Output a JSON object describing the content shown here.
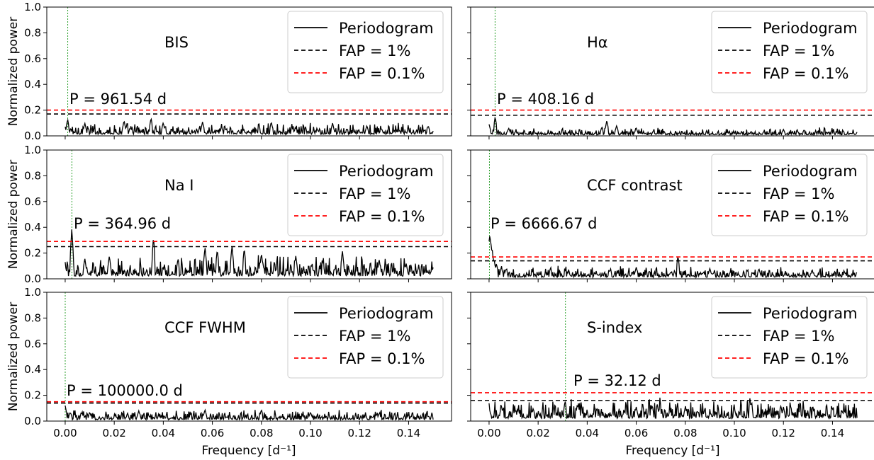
{
  "figure": {
    "ylabel": "Normalized power",
    "xlabel": "Frequency [d⁻¹]",
    "legend": {
      "periodogram": "Periodogram",
      "fap1": "FAP = 1%",
      "fap01": "FAP = 0.1%"
    },
    "y_tick_labels": [
      "0.0",
      "0.2",
      "0.4",
      "0.6",
      "0.8",
      "1.0"
    ],
    "x_tick_labels": [
      "0.00",
      "0.02",
      "0.04",
      "0.06",
      "0.08",
      "0.10",
      "0.12",
      "0.14"
    ],
    "colors": {
      "periodogram": "#000000",
      "fap1": "#000000",
      "fap01": "#ff0000",
      "peak_marker": "#2ca02c"
    }
  },
  "chart_data": [
    {
      "type": "line",
      "title": "BIS",
      "annotation": "P = 961.54 d",
      "xlim": [
        -0.0075,
        0.1575
      ],
      "ylim": [
        0,
        1
      ],
      "peak_frequency": 0.00104,
      "fap_1": 0.17,
      "fap_01": 0.2,
      "series": [
        {
          "noise_level": 0.04,
          "spikes": [
            [
              0.001,
              0.13
            ],
            [
              0.008,
              0.1
            ],
            [
              0.024,
              0.12
            ],
            [
              0.035,
              0.14
            ],
            [
              0.04,
              0.1
            ],
            [
              0.056,
              0.11
            ],
            [
              0.084,
              0.11
            ],
            [
              0.109,
              0.1
            ],
            [
              0.123,
              0.08
            ],
            [
              0.148,
              0.08
            ]
          ]
        }
      ]
    },
    {
      "type": "line",
      "title": "Hα",
      "annotation": "P = 408.16 d",
      "xlim": [
        -0.0075,
        0.1575
      ],
      "ylim": [
        0,
        1
      ],
      "peak_frequency": 0.00245,
      "fap_1": 0.16,
      "fap_01": 0.2,
      "series": [
        {
          "noise_level": 0.025,
          "spikes": [
            [
              0.0,
              0.09
            ],
            [
              0.0025,
              0.15
            ],
            [
              0.008,
              0.06
            ],
            [
              0.046,
              0.07
            ],
            [
              0.048,
              0.12
            ],
            [
              0.052,
              0.08
            ],
            [
              0.06,
              0.06
            ],
            [
              0.12,
              0.05
            ],
            [
              0.148,
              0.02
            ]
          ]
        }
      ]
    },
    {
      "type": "line",
      "title": "Na I",
      "annotation": "P = 364.96 d",
      "xlim": [
        -0.0075,
        0.1575
      ],
      "ylim": [
        0,
        1
      ],
      "peak_frequency": 0.00274,
      "fap_1": 0.25,
      "fap_01": 0.29,
      "series": [
        {
          "noise_level": 0.07,
          "spikes": [
            [
              0.0,
              0.09
            ],
            [
              0.0027,
              0.39
            ],
            [
              0.008,
              0.16
            ],
            [
              0.018,
              0.18
            ],
            [
              0.036,
              0.33
            ],
            [
              0.046,
              0.16
            ],
            [
              0.057,
              0.25
            ],
            [
              0.062,
              0.23
            ],
            [
              0.068,
              0.26
            ],
            [
              0.073,
              0.24
            ],
            [
              0.08,
              0.2
            ],
            [
              0.094,
              0.18
            ],
            [
              0.113,
              0.22
            ],
            [
              0.128,
              0.15
            ],
            [
              0.139,
              0.12
            ],
            [
              0.148,
              0.05
            ]
          ]
        }
      ]
    },
    {
      "type": "line",
      "title": "CCF contrast",
      "annotation": "P = 6666.67 d",
      "xlim": [
        -0.0075,
        0.1575
      ],
      "ylim": [
        0,
        1
      ],
      "peak_frequency": 0.00015,
      "fap_1": 0.14,
      "fap_01": 0.17,
      "series": [
        {
          "noise_level": 0.04,
          "spikes": [
            [
              0.0002,
              0.35
            ],
            [
              0.0006,
              0.32
            ],
            [
              0.0012,
              0.25
            ],
            [
              0.002,
              0.16
            ],
            [
              0.003,
              0.12
            ],
            [
              0.005,
              0.09
            ],
            [
              0.025,
              0.08
            ],
            [
              0.06,
              0.09
            ],
            [
              0.077,
              0.18
            ],
            [
              0.09,
              0.08
            ],
            [
              0.11,
              0.08
            ],
            [
              0.148,
              0.03
            ]
          ]
        }
      ]
    },
    {
      "type": "line",
      "title": "CCF FWHM",
      "annotation": "P = 100000.0 d",
      "xlim": [
        -0.0075,
        0.1575
      ],
      "ylim": [
        0,
        1
      ],
      "peak_frequency": 1e-05,
      "fap_1": 0.14,
      "fap_01": 0.15,
      "series": [
        {
          "noise_level": 0.035,
          "spikes": [
            [
              0.0,
              0.12
            ],
            [
              0.002,
              0.07
            ],
            [
              0.01,
              0.07
            ],
            [
              0.03,
              0.08
            ],
            [
              0.057,
              0.09
            ],
            [
              0.08,
              0.09
            ],
            [
              0.1,
              0.07
            ],
            [
              0.128,
              0.06
            ],
            [
              0.148,
              0.04
            ]
          ]
        }
      ]
    },
    {
      "type": "line",
      "title": "S-index",
      "annotation": "P = 32.12 d",
      "xlim": [
        -0.0075,
        0.1575
      ],
      "ylim": [
        0,
        1
      ],
      "peak_frequency": 0.03113,
      "fap_1": 0.16,
      "fap_01": 0.22,
      "series": [
        {
          "noise_level": 0.07,
          "spikes": [
            [
              0.0,
              0.11
            ],
            [
              0.005,
              0.12
            ],
            [
              0.018,
              0.1
            ],
            [
              0.031,
              0.16
            ],
            [
              0.036,
              0.13
            ],
            [
              0.06,
              0.11
            ],
            [
              0.08,
              0.11
            ],
            [
              0.1,
              0.1
            ],
            [
              0.12,
              0.11
            ],
            [
              0.145,
              0.08
            ],
            [
              0.148,
              0.03
            ]
          ]
        }
      ]
    }
  ]
}
